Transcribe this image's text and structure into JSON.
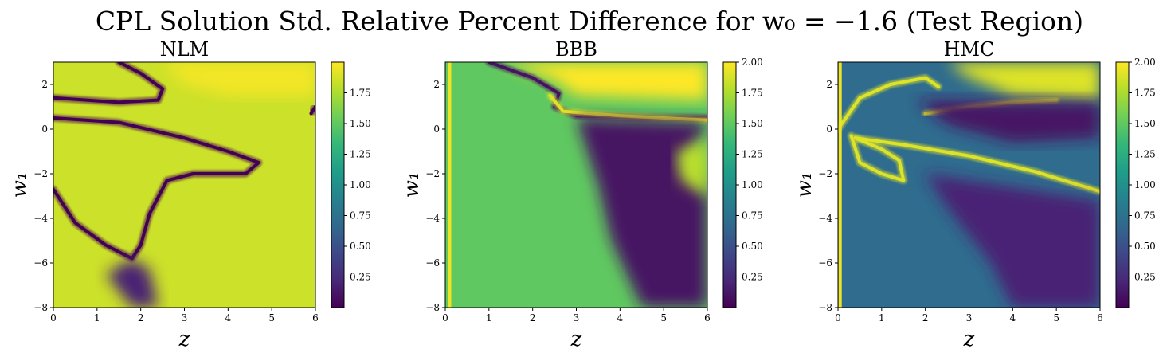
{
  "figure": {
    "title": "CPL Solution Std. Relative Percent Difference for w₀ = −1.6 (Test Region)"
  },
  "colormap": [
    "#440154",
    "#482878",
    "#3e4989",
    "#31688e",
    "#26828e",
    "#1f9e89",
    "#35b779",
    "#6ece58",
    "#b5de2b",
    "#fde725"
  ],
  "chart_data": [
    {
      "type": "heatmap",
      "title": "NLM",
      "xlabel": "z",
      "ylabel": "w₁",
      "xlim": [
        0,
        6
      ],
      "ylim": [
        -8,
        3
      ],
      "xticks": [
        "0",
        "1",
        "2",
        "3",
        "4",
        "5",
        "6"
      ],
      "yticks": [
        "2",
        "0",
        "−2",
        "−4",
        "−6",
        "−8"
      ],
      "colorbar": {
        "range": [
          0.0,
          2.0
        ],
        "ticks": [
          "0.25",
          "0.50",
          "0.75",
          "1.00",
          "1.25",
          "1.50",
          "1.75"
        ]
      },
      "background_value": 1.85,
      "features": [
        {
          "kind": "bright_region",
          "value": 1.97,
          "points": [
            [
              1.5,
              3
            ],
            [
              6,
              3
            ],
            [
              6,
              1.5
            ],
            [
              4,
              1.5
            ],
            [
              3,
              2
            ],
            [
              2.5,
              3
            ]
          ]
        },
        {
          "kind": "contour",
          "value": 0.0,
          "points": [
            [
              1.5,
              3
            ],
            [
              2,
              2.5
            ],
            [
              2.5,
              1.8
            ],
            [
              2.4,
              1.3
            ],
            [
              1.5,
              1.2
            ],
            [
              0,
              1.4
            ]
          ]
        },
        {
          "kind": "contour",
          "value": 0.0,
          "points": [
            [
              0,
              0.5
            ],
            [
              1.5,
              0.3
            ],
            [
              3,
              -0.4
            ],
            [
              4,
              -1.0
            ],
            [
              4.7,
              -1.5
            ],
            [
              4.4,
              -2.0
            ],
            [
              3.2,
              -2.0
            ],
            [
              2.6,
              -2.3
            ],
            [
              2.2,
              -3.8
            ],
            [
              2.0,
              -5.2
            ],
            [
              1.8,
              -5.8
            ],
            [
              1.2,
              -5.2
            ],
            [
              0.5,
              -4.2
            ],
            [
              0,
              -2.7
            ]
          ]
        },
        {
          "kind": "contour",
          "value": 0.0,
          "points": [
            [
              5.9,
              0.7
            ],
            [
              6,
              1.0
            ]
          ]
        },
        {
          "kind": "dark_region",
          "value": 0.2,
          "points": [
            [
              1.8,
              -5.8
            ],
            [
              2.2,
              -6.3
            ],
            [
              2.4,
              -8
            ],
            [
              1.8,
              -8
            ],
            [
              1.2,
              -6.5
            ]
          ]
        }
      ]
    },
    {
      "type": "heatmap",
      "title": "BBB",
      "xlabel": "z",
      "ylabel": "w₁",
      "xlim": [
        0,
        6
      ],
      "ylim": [
        -8,
        3
      ],
      "xticks": [
        "0",
        "1",
        "2",
        "3",
        "4",
        "5",
        "6"
      ],
      "yticks": [
        "2",
        "0",
        "−2",
        "−4",
        "−6",
        "−8"
      ],
      "colorbar": {
        "range": [
          0.0,
          2.0
        ],
        "ticks": [
          "0.25",
          "0.50",
          "0.75",
          "1.00",
          "1.25",
          "1.50",
          "1.75",
          "2.00"
        ]
      },
      "background_value": 1.5,
      "features": [
        {
          "kind": "bright_region",
          "value": 2.0,
          "points": [
            [
              1.3,
              3
            ],
            [
              6,
              3
            ],
            [
              6,
              1.3
            ],
            [
              3,
              1.5
            ],
            [
              2.5,
              2.2
            ]
          ]
        },
        {
          "kind": "contour",
          "value": 0.1,
          "points": [
            [
              1.0,
              3
            ],
            [
              2.0,
              2.3
            ],
            [
              2.6,
              1.6
            ],
            [
              2.5,
              1.0
            ],
            [
              3.0,
              0.6
            ],
            [
              4.5,
              0.5
            ],
            [
              6,
              0.5
            ]
          ]
        },
        {
          "kind": "contour",
          "value": 1.9,
          "points": [
            [
              2.4,
              1.5
            ],
            [
              2.7,
              0.8
            ],
            [
              4,
              0.6
            ],
            [
              6,
              0.4
            ]
          ]
        },
        {
          "kind": "dark_region",
          "value": 0.1,
          "points": [
            [
              3.0,
              0.5
            ],
            [
              3.5,
              -2.5
            ],
            [
              3.8,
              -5
            ],
            [
              4.5,
              -8
            ],
            [
              6,
              -8
            ],
            [
              6,
              -3
            ],
            [
              5.5,
              -1.5
            ],
            [
              6,
              0.3
            ]
          ]
        },
        {
          "kind": "bright_region",
          "value": 1.8,
          "points": [
            [
              5.3,
              -1.0
            ],
            [
              6,
              -0.5
            ],
            [
              6,
              -3
            ],
            [
              5.4,
              -2.3
            ]
          ]
        },
        {
          "kind": "left_band",
          "value": 1.95,
          "points": [
            [
              0.1,
              3
            ],
            [
              0.1,
              -8
            ]
          ]
        }
      ]
    },
    {
      "type": "heatmap",
      "title": "HMC",
      "xlabel": "z",
      "ylabel": "w₁",
      "xlim": [
        0,
        6
      ],
      "ylim": [
        -8,
        3
      ],
      "xticks": [
        "0",
        "1",
        "2",
        "3",
        "4",
        "5",
        "6"
      ],
      "yticks": [
        "2",
        "0",
        "−2",
        "−4",
        "−6",
        "−8"
      ],
      "colorbar": {
        "range": [
          0.0,
          2.0
        ],
        "ticks": [
          "0.25",
          "0.50",
          "0.75",
          "1.00",
          "1.25",
          "1.50",
          "1.75",
          "2.00"
        ]
      },
      "background_value": 0.7,
      "features": [
        {
          "kind": "bright_region",
          "value": 1.9,
          "points": [
            [
              2.5,
              3
            ],
            [
              6,
              3
            ],
            [
              6,
              1.3
            ],
            [
              4,
              1.5
            ],
            [
              3,
              2.3
            ]
          ]
        },
        {
          "kind": "contour",
          "value": 1.9,
          "points": [
            [
              0,
              0
            ],
            [
              0.5,
              1.4
            ],
            [
              1.2,
              2
            ],
            [
              2.0,
              2.3
            ],
            [
              2.3,
              1.9
            ]
          ]
        },
        {
          "kind": "contour",
          "value": 1.9,
          "points": [
            [
              2.0,
              0.7
            ],
            [
              3,
              1.0
            ],
            [
              4,
              1.2
            ],
            [
              5,
              1.3
            ]
          ]
        },
        {
          "kind": "contour",
          "value": 1.9,
          "points": [
            [
              0.4,
              -0.4
            ],
            [
              1.5,
              -0.7
            ],
            [
              3,
              -1.2
            ],
            [
              4.5,
              -1.9
            ],
            [
              6,
              -2.8
            ]
          ]
        },
        {
          "kind": "contour",
          "value": 1.9,
          "points": [
            [
              0.3,
              -0.3
            ],
            [
              0.5,
              -1.5
            ],
            [
              1.0,
              -2.0
            ],
            [
              1.5,
              -2.3
            ],
            [
              1.4,
              -1.4
            ],
            [
              1.0,
              -0.9
            ],
            [
              0.4,
              -0.4
            ]
          ]
        },
        {
          "kind": "dark_region",
          "value": 0.1,
          "points": [
            [
              1.8,
              1.3
            ],
            [
              6,
              1.2
            ],
            [
              6,
              -0.4
            ],
            [
              4,
              -0.6
            ],
            [
              2.5,
              0.2
            ]
          ]
        },
        {
          "kind": "dark_region",
          "value": 0.2,
          "points": [
            [
              2,
              -2
            ],
            [
              6,
              -3.2
            ],
            [
              6,
              -8
            ],
            [
              4,
              -8
            ],
            [
              3.5,
              -6
            ],
            [
              2.5,
              -3.5
            ]
          ]
        },
        {
          "kind": "left_band",
          "value": 1.95,
          "points": [
            [
              0.05,
              3
            ],
            [
              0.05,
              -8
            ]
          ]
        }
      ]
    }
  ]
}
